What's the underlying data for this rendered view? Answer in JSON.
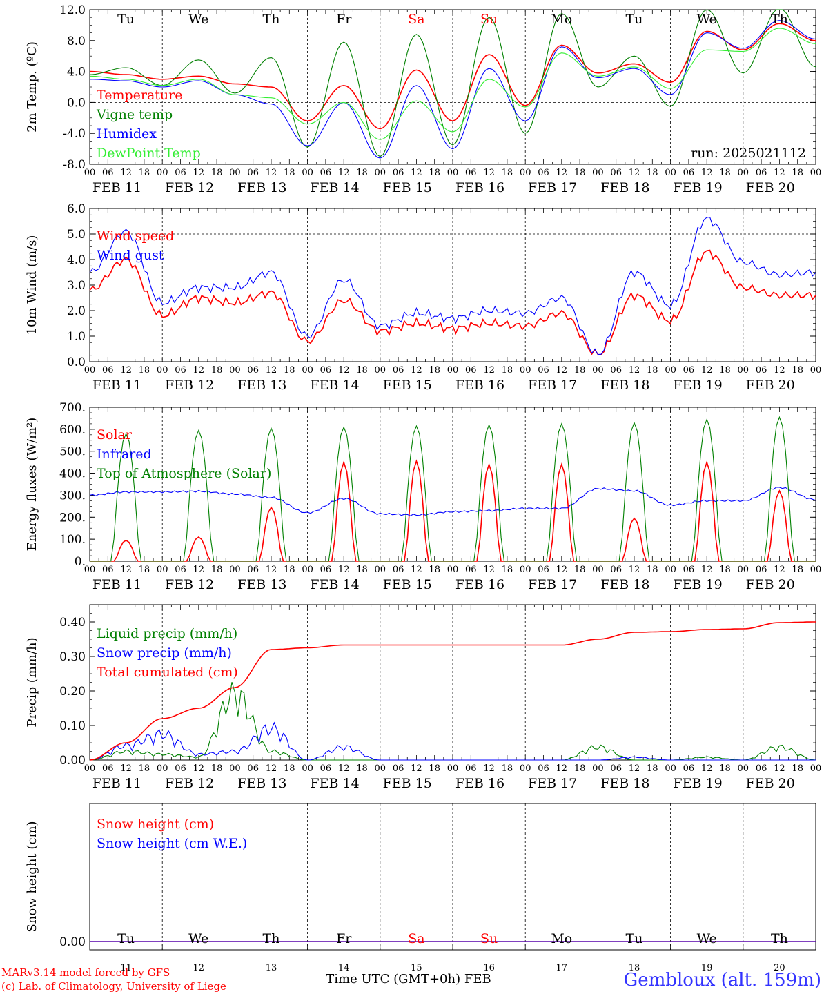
{
  "page": {
    "footer_model": "MARv3.14 model forced by GFS",
    "footer_lab": "(c) Lab. of Climatology, University of Liege",
    "footer_time": "Time UTC (GMT+0h) FEB",
    "station": "Gembloux (alt. 159m)",
    "run": "run: 2025021112"
  },
  "colors": {
    "red": "#ff0000",
    "green": "#008000",
    "blue": "#0000ff",
    "lightgreen": "#33ee33",
    "station": "#3333ff"
  },
  "chart_data": [
    {
      "type": "line",
      "ylabel": "2m Temp. (ºC)",
      "ylim": [
        -8,
        12
      ],
      "yticks": [
        "-8.0",
        "-4.0",
        "0.0",
        "4.0",
        "8.0",
        "12.0"
      ],
      "zero_dashed": 0,
      "x": [
        0,
        12,
        24,
        36,
        48,
        60,
        72,
        84,
        96,
        108,
        120,
        132,
        144,
        156,
        168,
        180,
        192,
        204,
        216,
        228,
        240
      ],
      "series": [
        {
          "name": "Temperature",
          "color": "#ff0000",
          "values": [
            4.0,
            3.6,
            3.0,
            3.4,
            2.4,
            2.0,
            -2.4,
            2.2,
            -3.4,
            4.2,
            -2.4,
            6.2,
            -0.4,
            7.4,
            3.8,
            5.0,
            2.6,
            9.2,
            6.8,
            10.2,
            8.0
          ]
        },
        {
          "name": "Vigne temp",
          "color": "#008000",
          "values": [
            3.6,
            4.5,
            2.2,
            5.5,
            1.2,
            5.8,
            -5.8,
            7.8,
            -7.0,
            8.8,
            -5.5,
            11.0,
            -4.0,
            11.5,
            2.0,
            6.0,
            -0.5,
            12.0,
            3.8,
            12.2,
            4.6
          ]
        },
        {
          "name": "Humidex",
          "color": "#0000ff",
          "values": [
            3.0,
            2.8,
            2.0,
            2.8,
            1.0,
            -0.2,
            -5.6,
            0.0,
            -7.2,
            2.2,
            -6.0,
            4.4,
            -2.4,
            7.2,
            3.2,
            4.4,
            1.0,
            9.0,
            7.0,
            10.6,
            8.2
          ]
        },
        {
          "name": "DewPoint Temp",
          "color": "#33ee33",
          "values": [
            3.4,
            3.0,
            2.2,
            3.0,
            1.0,
            0.6,
            -2.8,
            0.0,
            -4.8,
            0.2,
            -3.8,
            3.0,
            -0.6,
            6.4,
            3.4,
            4.6,
            1.8,
            6.8,
            6.6,
            9.6,
            7.6
          ]
        }
      ]
    },
    {
      "type": "line",
      "ylabel": "10m Wind (m/s)",
      "ylim": [
        0,
        6
      ],
      "yticks": [
        "0.0",
        "1.0",
        "2.0",
        "3.0",
        "4.0",
        "5.0",
        "6.0"
      ],
      "ref_dashed": 5,
      "x": [
        0,
        12,
        24,
        36,
        48,
        60,
        72,
        84,
        96,
        108,
        120,
        132,
        144,
        156,
        168,
        180,
        192,
        204,
        216,
        228,
        240
      ],
      "series": [
        {
          "name": "Wind speed",
          "color": "#ff0000",
          "values": [
            2.8,
            4.0,
            1.8,
            2.5,
            2.3,
            2.7,
            0.8,
            2.4,
            1.2,
            1.5,
            1.3,
            1.5,
            1.4,
            1.9,
            0.3,
            2.6,
            1.6,
            4.3,
            2.9,
            2.6,
            2.6
          ]
        },
        {
          "name": "Wind gust",
          "color": "#0000ff",
          "values": [
            3.5,
            5.1,
            2.3,
            2.9,
            2.9,
            3.5,
            1.0,
            3.2,
            1.4,
            1.9,
            1.7,
            2.0,
            1.9,
            2.5,
            0.3,
            3.5,
            2.2,
            5.6,
            3.9,
            3.4,
            3.5
          ]
        }
      ]
    },
    {
      "type": "line",
      "ylabel": "Energy fluxes (W/m²)",
      "ylim": [
        0,
        700
      ],
      "yticks": [
        "0.",
        "100.",
        "200.",
        "300.",
        "400.",
        "500.",
        "600.",
        "700."
      ],
      "series": [
        {
          "name": "Solar",
          "color": "#ff0000",
          "daily_peak": [
            95,
            110,
            245,
            450,
            455,
            440,
            440,
            195,
            450,
            320
          ]
        },
        {
          "name": "Infrared",
          "color": "#0000ff",
          "x": [
            0,
            12,
            24,
            36,
            48,
            60,
            72,
            84,
            96,
            108,
            120,
            132,
            144,
            156,
            168,
            180,
            192,
            204,
            216,
            228,
            240
          ],
          "values": [
            300,
            315,
            315,
            318,
            305,
            290,
            220,
            285,
            215,
            210,
            225,
            230,
            240,
            240,
            330,
            320,
            255,
            275,
            275,
            335,
            280
          ]
        },
        {
          "name": "Top of Atmosphere (Solar)",
          "color": "#008000",
          "daily_peak": [
            580,
            595,
            605,
            610,
            615,
            620,
            625,
            630,
            645,
            655
          ]
        }
      ]
    },
    {
      "type": "line",
      "ylabel": "Precip (mm/h)",
      "ylim": [
        0,
        0.45
      ],
      "yticks": [
        "0.00",
        "0.10",
        "0.20",
        "0.30",
        "0.40"
      ],
      "x": [
        0,
        12,
        24,
        36,
        48,
        60,
        72,
        84,
        96,
        108,
        120,
        132,
        144,
        156,
        168,
        180,
        192,
        204,
        216,
        228,
        240
      ],
      "series": [
        {
          "name": "Liquid precip (mm/h)",
          "color": "#008000",
          "values": [
            0.0,
            0.03,
            0.02,
            0.01,
            0.23,
            0.03,
            0.0,
            0.0,
            0.0,
            0.0,
            0.0,
            0.0,
            0.0,
            0.0,
            0.045,
            0.0,
            0.0,
            0.01,
            0.0,
            0.045,
            0.0
          ]
        },
        {
          "name": "Snow precip (mm/h)",
          "color": "#0000ff",
          "values": [
            0.0,
            0.05,
            0.09,
            0.02,
            0.03,
            0.11,
            0.0,
            0.045,
            0.0,
            0.0,
            0.0,
            0.0,
            0.0,
            0.0,
            0.0,
            0.01,
            0.0,
            0.0,
            0.0,
            0.0,
            0.0
          ]
        },
        {
          "name": "Total cumulated (cm)",
          "color": "#ff0000",
          "values": [
            0.0,
            0.05,
            0.12,
            0.15,
            0.21,
            0.32,
            0.325,
            0.333,
            0.333,
            0.333,
            0.333,
            0.333,
            0.333,
            0.333,
            0.35,
            0.37,
            0.372,
            0.378,
            0.38,
            0.398,
            0.4
          ]
        }
      ]
    },
    {
      "type": "line",
      "ylabel": "Snow height (cm)",
      "yticks": [
        "0.00"
      ],
      "series": [
        {
          "name": "Snow height (cm)",
          "color": "#ff0000",
          "values": [
            0,
            0
          ]
        },
        {
          "name": "Snow height (cm W.E.)",
          "color": "#0000ff",
          "values": [
            0,
            0
          ]
        }
      ]
    }
  ],
  "days": {
    "weekdays": [
      "Tu",
      "We",
      "Th",
      "Fr",
      "Sa",
      "Su",
      "Mo",
      "Tu",
      "We",
      "Th"
    ],
    "weekend": [
      false,
      false,
      false,
      false,
      true,
      true,
      false,
      false,
      false,
      false
    ],
    "dates": [
      "FEB 11",
      "FEB 12",
      "FEB 13",
      "FEB 14",
      "FEB 15",
      "FEB 16",
      "FEB 17",
      "FEB 18",
      "FEB 19",
      "FEB 20"
    ],
    "day_numbers": [
      "11",
      "12",
      "13",
      "14",
      "15",
      "16",
      "17",
      "18",
      "19",
      "20"
    ],
    "hour_labels": [
      "00",
      "06",
      "12",
      "18"
    ],
    "end_hour": "00"
  }
}
